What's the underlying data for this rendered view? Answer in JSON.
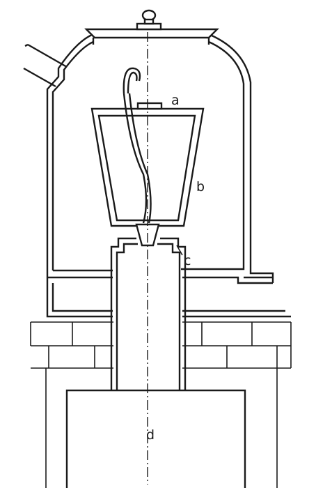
{
  "figure": {
    "labels": {
      "a": "a",
      "b": "b",
      "c": "c",
      "d": "d"
    }
  }
}
